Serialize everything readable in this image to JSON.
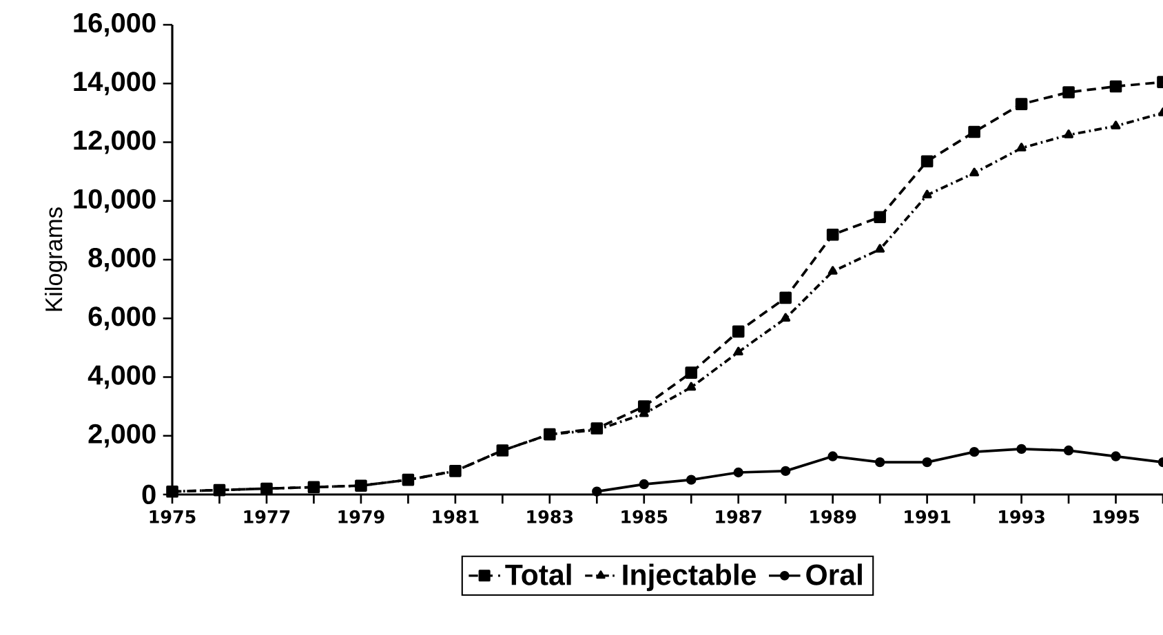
{
  "chart_data": {
    "type": "line",
    "ylabel": "Kilograms",
    "x": [
      1975,
      1976,
      1977,
      1978,
      1979,
      1980,
      1981,
      1982,
      1983,
      1984,
      1985,
      1986,
      1987,
      1988,
      1989,
      1990,
      1991,
      1992,
      1993,
      1994,
      1995,
      1996
    ],
    "series": [
      {
        "name": "Total",
        "color": "#000000",
        "marker": "square",
        "line_style": "dashed",
        "values": [
          100,
          150,
          200,
          250,
          300,
          500,
          800,
          1500,
          2050,
          2250,
          3000,
          4150,
          5550,
          6700,
          8850,
          9450,
          11350,
          12350,
          13300,
          13700,
          13900,
          14050
        ]
      },
      {
        "name": "Injectable",
        "color": "#000000",
        "marker": "triangle",
        "line_style": "dashdotted",
        "values": [
          100,
          150,
          200,
          250,
          300,
          500,
          800,
          1500,
          2050,
          2200,
          2750,
          3650,
          4850,
          6000,
          7600,
          8350,
          10200,
          10950,
          11800,
          12250,
          12550,
          13000
        ]
      },
      {
        "name": "Oral",
        "color": "#000000",
        "marker": "circle",
        "line_style": "solid",
        "values": [
          null,
          null,
          null,
          null,
          null,
          null,
          null,
          null,
          null,
          100,
          350,
          500,
          750,
          800,
          1300,
          1100,
          1100,
          1450,
          1550,
          1500,
          1300,
          1100
        ]
      }
    ],
    "xlim": [
      1975,
      1996
    ],
    "xticks": [
      1975,
      {
        "value": 1976,
        "label": null
      },
      1977,
      {
        "value": 1978,
        "label": null
      },
      1979,
      {
        "value": 1980,
        "label": null
      },
      1981,
      {
        "value": 1982,
        "label": null
      },
      1983,
      {
        "value": 1984,
        "label": null
      },
      1985,
      {
        "value": 1986,
        "label": null
      },
      1987,
      {
        "value": 1988,
        "label": null
      },
      1989,
      {
        "value": 1990,
        "label": null
      },
      1991,
      {
        "value": 1992,
        "label": null
      },
      1993,
      {
        "value": 1994,
        "label": null
      },
      1995,
      {
        "value": 1996,
        "label": null
      }
    ],
    "ylim": [
      0,
      16000
    ],
    "yticks": [
      0,
      {
        "value": 2000,
        "label": "2,000"
      },
      {
        "value": 4000,
        "label": "4,000"
      },
      {
        "value": 6000,
        "label": "6,000"
      },
      {
        "value": 8000,
        "label": "8,000"
      },
      {
        "value": 10000,
        "label": "10,000"
      },
      {
        "value": 12000,
        "label": "12,000"
      },
      {
        "value": 14000,
        "label": "14,000"
      },
      {
        "value": 16000,
        "label": "16,000"
      }
    ],
    "grid": false,
    "legend": "bottom"
  }
}
